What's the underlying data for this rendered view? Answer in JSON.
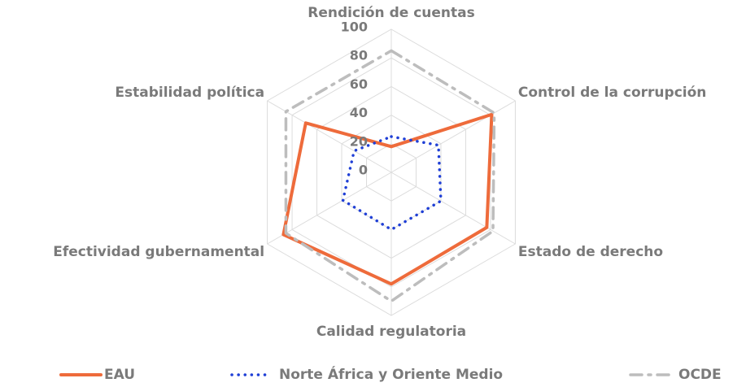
{
  "chart_data": {
    "type": "radar",
    "categories": [
      "Rendición de cuentas",
      "Control de la corrupción",
      "Estado de derecho",
      "Calidad regulatoria",
      "Efectividad gubernamental",
      "Estabilidad política"
    ],
    "series": [
      {
        "name": "EAU",
        "color": "#ee6b3b",
        "style": "solid",
        "values": [
          18,
          81,
          77,
          78,
          87,
          69
        ]
      },
      {
        "name": "Norte África y Oriente Medio",
        "color": "#1f3fd6",
        "style": "dotted",
        "values": [
          25,
          38,
          40,
          40,
          39,
          30
        ]
      },
      {
        "name": "OCDE",
        "color": "#bdbdbd",
        "style": "dashdot",
        "values": [
          85,
          83,
          82,
          90,
          85,
          85
        ]
      }
    ],
    "ylim": [
      0,
      100
    ],
    "yticks": [
      0,
      20,
      40,
      60,
      80,
      100
    ],
    "grid": true,
    "legend": "bottom"
  }
}
